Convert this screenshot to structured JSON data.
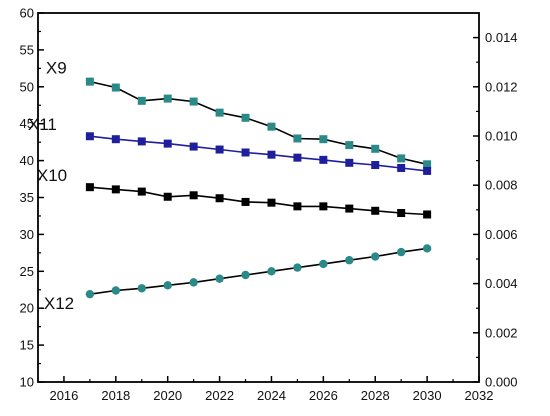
{
  "chart_data": {
    "type": "line",
    "title": "",
    "xlabel": "",
    "ylabel": "",
    "xlim": [
      2015,
      2032
    ],
    "ylim": [
      10,
      60
    ],
    "y2lim": [
      0,
      0.015
    ],
    "grid": false,
    "legend": "none",
    "x_ticks": [
      2016,
      2018,
      2020,
      2022,
      2024,
      2026,
      2028,
      2030,
      2032
    ],
    "x_tick_labels": [
      "2016",
      "2018",
      "2020",
      "2022",
      "2024",
      "2026",
      "2028",
      "2030",
      "2032"
    ],
    "y_ticks": [
      10,
      15,
      20,
      25,
      30,
      35,
      40,
      45,
      50,
      55,
      60
    ],
    "y_tick_labels": [
      "10",
      "15",
      "20",
      "25",
      "30",
      "35",
      "40",
      "45",
      "50",
      "55",
      "60"
    ],
    "y2_ticks": [
      0,
      0.002,
      0.004,
      0.006,
      0.008,
      0.01,
      0.012,
      0.014
    ],
    "y2_tick_labels": [
      "0.000",
      "0.002",
      "0.004",
      "0.006",
      "0.008",
      "0.010",
      "0.012",
      "0.014"
    ],
    "x": [
      2017,
      2018,
      2019,
      2020,
      2021,
      2022,
      2023,
      2024,
      2025,
      2026,
      2027,
      2028,
      2029,
      2030
    ],
    "series": [
      {
        "name": "X9",
        "axis": "left",
        "marker": "square",
        "color": "#2a8a87",
        "line_color": "#000000",
        "values": [
          50.7,
          49.9,
          48.1,
          48.4,
          48.0,
          46.5,
          45.8,
          44.6,
          43.0,
          42.9,
          42.1,
          41.6,
          40.3,
          39.5
        ]
      },
      {
        "name": "X11",
        "axis": "left",
        "marker": "square",
        "color": "#1f1f9e",
        "line_color": "#1f1f9e",
        "values": [
          43.3,
          42.9,
          42.6,
          42.3,
          41.9,
          41.5,
          41.1,
          40.8,
          40.4,
          40.1,
          39.7,
          39.4,
          39.0,
          38.6
        ]
      },
      {
        "name": "X10",
        "axis": "left",
        "marker": "square",
        "color": "#000000",
        "line_color": "#000000",
        "values": [
          36.4,
          36.1,
          35.8,
          35.1,
          35.3,
          34.9,
          34.4,
          34.3,
          33.8,
          33.8,
          33.5,
          33.2,
          32.9,
          32.7
        ]
      },
      {
        "name": "X12",
        "axis": "left",
        "marker": "circle",
        "color": "#2a8a87",
        "line_color": "#000000",
        "values": [
          21.9,
          22.4,
          22.7,
          23.1,
          23.5,
          24.0,
          24.5,
          25.0,
          25.5,
          26.0,
          26.5,
          27.0,
          27.6,
          28.1
        ]
      }
    ]
  }
}
